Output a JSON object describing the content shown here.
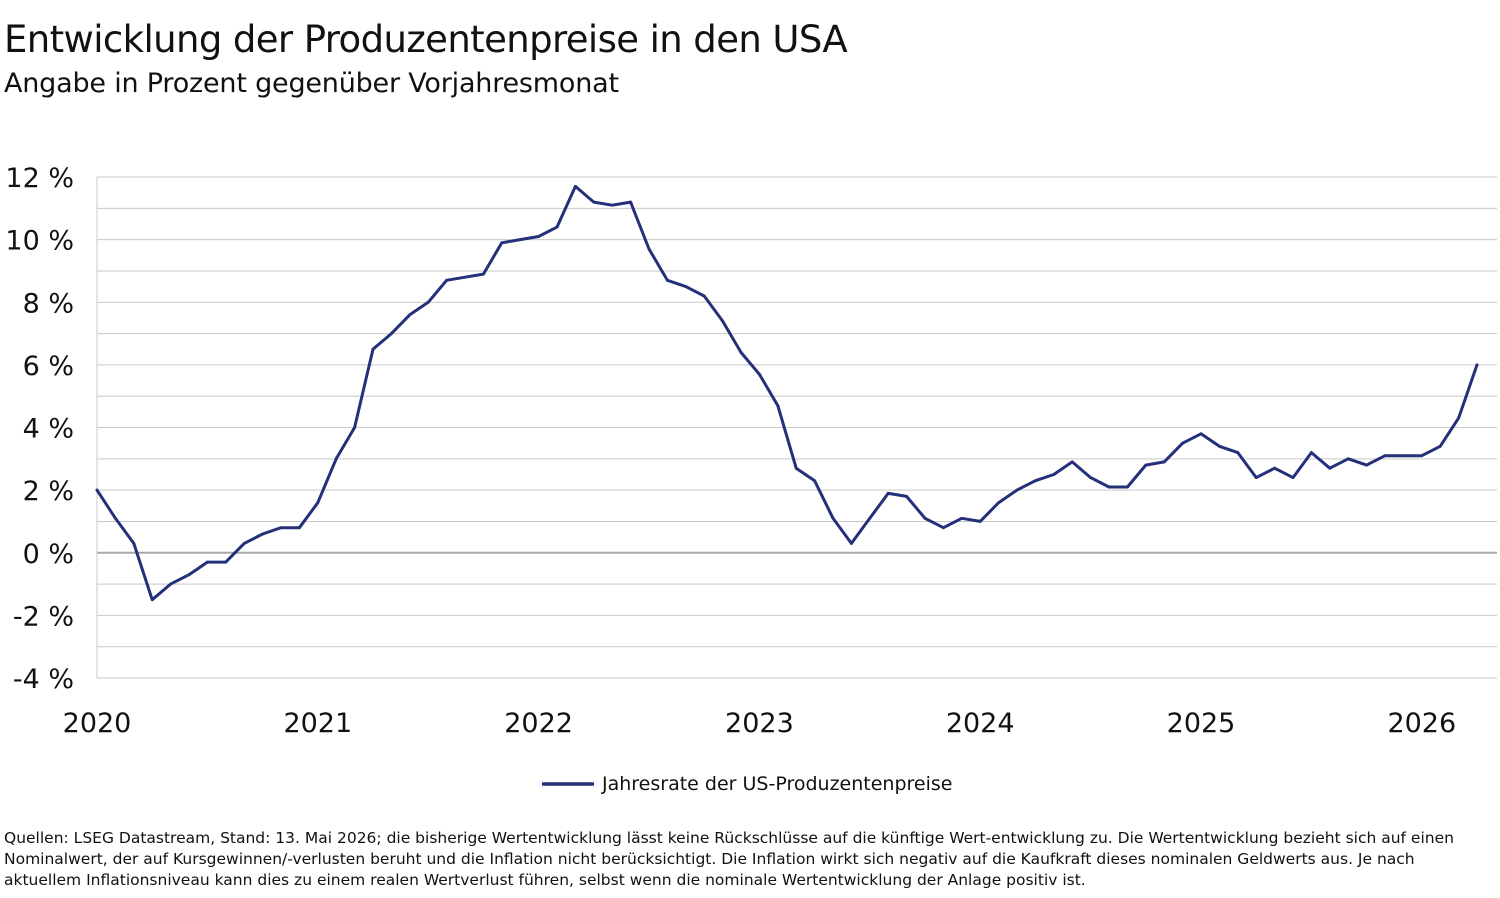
{
  "title": "Entwicklung der Produzentenpreise in den USA",
  "subtitle": "Angabe in Prozent gegenüber Vorjahresmonat",
  "footnote": "Quellen: LSEG Datastream, Stand: 13. Mai 2026; die bisherige Wertentwicklung lässt keine Rückschlüsse auf die künftige Wert-entwicklung zu. Die Wertentwicklung bezieht sich auf einen Nominalwert, der auf Kursgewinnen/-verlusten beruht und die Inflation nicht berücksichtigt. Die Inflation wirkt sich negativ auf die Kaufkraft dieses nominalen Geldwerts aus. Je nach aktuellem Inflationsniveau kann dies zu einem realen Wertverlust führen, selbst wenn die nominale Wertentwicklung der Anlage positiv ist.",
  "chart_data": {
    "type": "line",
    "title": "Entwicklung der Produzentenpreise in den USA",
    "subtitle": "Angabe in Prozent gegenüber Vorjahresmonat",
    "ylim": [
      -4,
      12
    ],
    "xlim": [
      "2020-01",
      "2026-04"
    ],
    "y_ticks": [
      12,
      10,
      8,
      6,
      4,
      2,
      0,
      -2,
      -4
    ],
    "y_tick_labels": [
      "12 %",
      "10 %",
      "8 %",
      "6 %",
      "4 %",
      "2 %",
      "0 %",
      "-2 %",
      "-4 %"
    ],
    "x_tick_labels": [
      "2020",
      "2021",
      "2022",
      "2023",
      "2024",
      "2025",
      "2026"
    ],
    "grid": true,
    "legend": "bottom-center",
    "series": [
      {
        "name": "Jahresrate der US-Produzentenpreise",
        "color": "#25307a",
        "x": [
          "2020-01",
          "2020-02",
          "2020-03",
          "2020-04",
          "2020-05",
          "2020-06",
          "2020-07",
          "2020-08",
          "2020-09",
          "2020-10",
          "2020-11",
          "2020-12",
          "2021-01",
          "2021-02",
          "2021-03",
          "2021-04",
          "2021-05",
          "2021-06",
          "2021-07",
          "2021-08",
          "2021-09",
          "2021-10",
          "2021-11",
          "2021-12",
          "2022-01",
          "2022-02",
          "2022-03",
          "2022-04",
          "2022-05",
          "2022-06",
          "2022-07",
          "2022-08",
          "2022-09",
          "2022-10",
          "2022-11",
          "2022-12",
          "2023-01",
          "2023-02",
          "2023-03",
          "2023-04",
          "2023-05",
          "2023-06",
          "2023-07",
          "2023-08",
          "2023-09",
          "2023-10",
          "2023-11",
          "2023-12",
          "2024-01",
          "2024-02",
          "2024-03",
          "2024-04",
          "2024-05",
          "2024-06",
          "2024-07",
          "2024-08",
          "2024-09",
          "2024-10",
          "2024-11",
          "2024-12",
          "2025-01",
          "2025-02",
          "2025-03",
          "2025-04",
          "2025-05",
          "2025-06",
          "2025-07",
          "2025-08",
          "2025-09",
          "2025-10",
          "2025-11",
          "2025-12",
          "2026-01",
          "2026-02",
          "2026-03",
          "2026-04"
        ],
        "values": [
          2.0,
          1.1,
          0.3,
          -1.5,
          -1.0,
          -0.7,
          -0.3,
          -0.3,
          0.3,
          0.6,
          0.8,
          0.8,
          1.6,
          3.0,
          4.0,
          6.5,
          7.0,
          7.6,
          8.0,
          8.7,
          8.8,
          8.9,
          9.9,
          10.0,
          10.1,
          10.4,
          11.7,
          11.2,
          11.1,
          11.2,
          9.7,
          8.7,
          8.5,
          8.2,
          7.4,
          6.4,
          5.7,
          4.7,
          2.7,
          2.3,
          1.1,
          0.3,
          1.1,
          1.9,
          1.8,
          1.1,
          0.8,
          1.1,
          1.0,
          1.6,
          2.0,
          2.3,
          2.5,
          2.9,
          2.4,
          2.1,
          2.1,
          2.8,
          2.9,
          3.5,
          3.8,
          3.4,
          3.2,
          2.4,
          2.7,
          2.4,
          3.2,
          2.7,
          3.0,
          2.8,
          3.1,
          3.1,
          3.1,
          3.4,
          4.3,
          6.0
        ]
      }
    ]
  }
}
